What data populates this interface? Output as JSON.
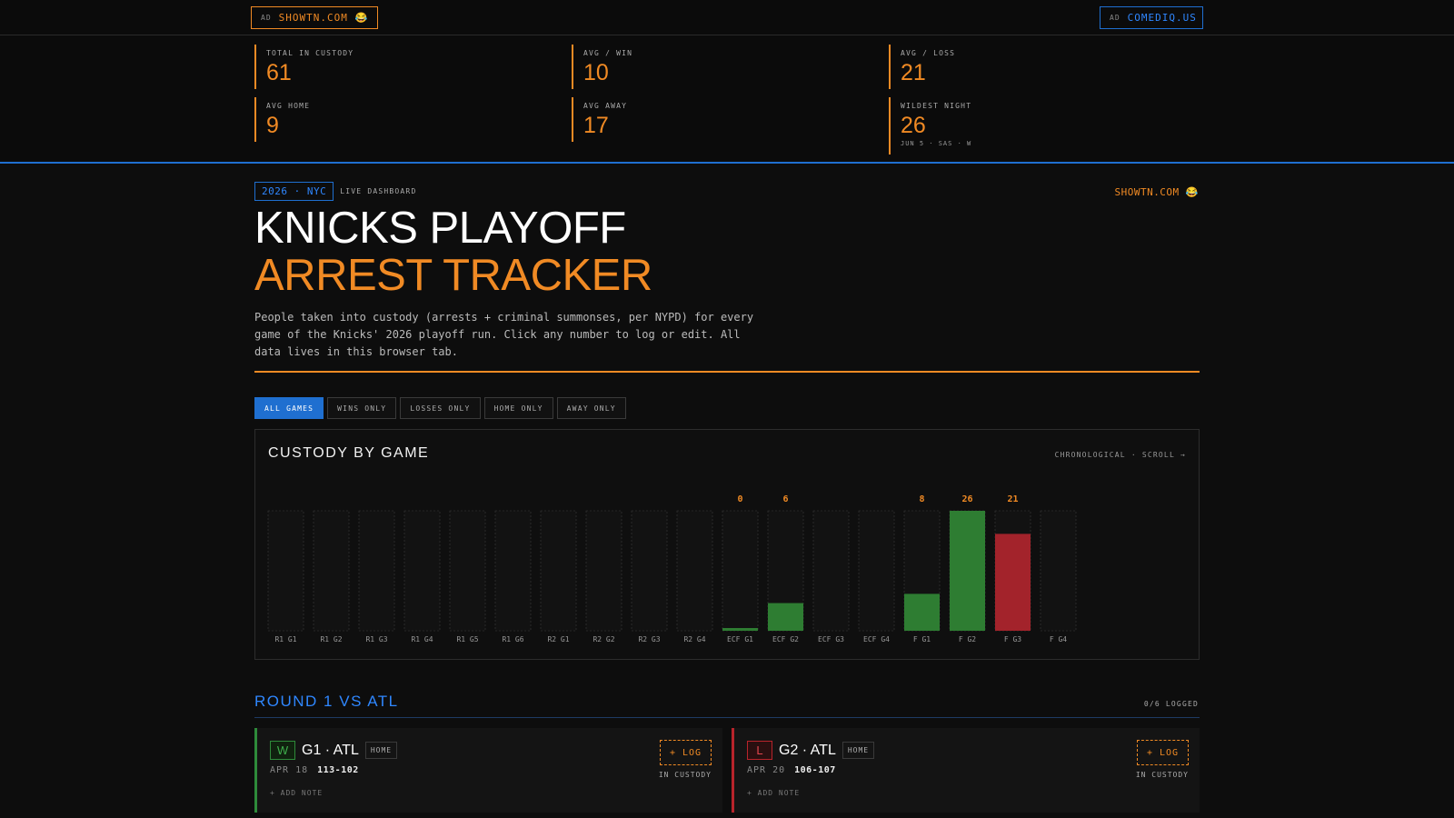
{
  "ads": {
    "left": {
      "tag": "AD",
      "label": "SHOWTN.COM 😂"
    },
    "right": {
      "tag": "AD",
      "label": "COMEDIQ.US"
    }
  },
  "stats": [
    {
      "label": "TOTAL IN CUSTODY",
      "value": "61",
      "sub": ""
    },
    {
      "label": "AVG / WIN",
      "value": "10",
      "sub": ""
    },
    {
      "label": "AVG / LOSS",
      "value": "21",
      "sub": ""
    },
    {
      "label": "AVG HOME",
      "value": "9",
      "sub": ""
    },
    {
      "label": "AVG AWAY",
      "value": "17",
      "sub": ""
    },
    {
      "label": "WILDEST NIGHT",
      "value": "26",
      "sub": "JUN 5 · SAS · W"
    }
  ],
  "header": {
    "year_chip": "2026 · NYC",
    "live_label": "LIVE DASHBOARD",
    "brand": "SHOWTN.COM 😂",
    "title_line1": "KNICKS PLAYOFF",
    "title_line2": "ARREST TRACKER",
    "description": "People taken into custody (arrests + criminal summonses, per NYPD) for every game of the Knicks' 2026 playoff run. Click any number to log or edit. All data lives in this browser tab."
  },
  "filters": [
    "ALL GAMES",
    "WINS ONLY",
    "LOSSES ONLY",
    "HOME ONLY",
    "AWAY ONLY"
  ],
  "chart": {
    "title": "CUSTODY BY GAME",
    "hint": "CHRONOLOGICAL · SCROLL →"
  },
  "chart_data": {
    "type": "bar",
    "categories": [
      "R1 G1",
      "R1 G2",
      "R1 G3",
      "R1 G4",
      "R1 G5",
      "R1 G6",
      "R2 G1",
      "R2 G2",
      "R2 G3",
      "R2 G4",
      "ECF G1",
      "ECF G2",
      "ECF G3",
      "ECF G4",
      "F G1",
      "F G2",
      "F G3",
      "F G4"
    ],
    "values": [
      null,
      null,
      null,
      null,
      null,
      null,
      null,
      null,
      null,
      null,
      0,
      6,
      null,
      null,
      8,
      26,
      21,
      null
    ],
    "results": [
      "",
      "",
      "",
      "",
      "",
      "",
      "",
      "",
      "",
      "",
      "W",
      "W",
      "",
      "",
      "W",
      "W",
      "L",
      ""
    ],
    "ylim": [
      0,
      26
    ],
    "colors": {
      "win": "#2e7d32",
      "loss": "#a3232b",
      "label": "#f08a24",
      "empty": "#3a3a3a"
    }
  },
  "round": {
    "title": "ROUND 1 VS ATL",
    "count": "0/6 LOGGED",
    "games": [
      {
        "result": "W",
        "name": "G1 · ATL",
        "venue": "HOME",
        "date": "APR 18",
        "score": "113-102",
        "note": "+ ADD NOTE",
        "log": "+ LOG",
        "custody_label": "IN CUSTODY"
      },
      {
        "result": "L",
        "name": "G2 · ATL",
        "venue": "HOME",
        "date": "APR 20",
        "score": "106-107",
        "note": "+ ADD NOTE",
        "log": "+ LOG",
        "custody_label": "IN CUSTODY"
      }
    ]
  }
}
